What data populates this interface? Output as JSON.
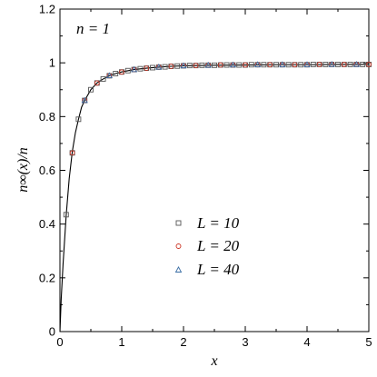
{
  "chart_data": {
    "type": "scatter",
    "annotation": "n = 1",
    "xlabel": "x",
    "ylabel": "n∞(x)/n",
    "xlim": [
      0,
      5
    ],
    "ylim": [
      0,
      1.2
    ],
    "xticks": [
      "0",
      "1",
      "2",
      "3",
      "4",
      "5"
    ],
    "yticks": [
      "0",
      "0.2",
      "0.4",
      "0.6",
      "0.8",
      "1",
      "1.2"
    ],
    "grid": false,
    "legend_position": "bottom-center",
    "curve": {
      "x": [
        0,
        0.02,
        0.05,
        0.1,
        0.15,
        0.2,
        0.25,
        0.3,
        0.35,
        0.4,
        0.5,
        0.6,
        0.7,
        0.8,
        0.9,
        1.0,
        1.2,
        1.4,
        1.6,
        1.8,
        2.0,
        2.5,
        3.0,
        3.5,
        4.0,
        4.5,
        5.0
      ],
      "y": [
        0,
        0.12,
        0.25,
        0.43,
        0.57,
        0.67,
        0.74,
        0.79,
        0.835,
        0.86,
        0.9,
        0.925,
        0.94,
        0.952,
        0.96,
        0.966,
        0.975,
        0.98,
        0.984,
        0.987,
        0.989,
        0.991,
        0.992,
        0.993,
        0.993,
        0.994,
        0.994
      ]
    },
    "series": [
      {
        "name": "L = 10",
        "marker": "square",
        "color": "#555555",
        "x": [
          0.1,
          0.2,
          0.3,
          0.4,
          0.5,
          0.6,
          0.7,
          0.8,
          0.9,
          1.0,
          1.1,
          1.2,
          1.3,
          1.4,
          1.5,
          1.6,
          1.7,
          1.8,
          1.9,
          2.0,
          2.1,
          2.2,
          2.3,
          2.4,
          2.5,
          2.6,
          2.7,
          2.8,
          2.9,
          3.0,
          3.1,
          3.2,
          3.3,
          3.4,
          3.5,
          3.6,
          3.7,
          3.8,
          3.9,
          4.0,
          4.1,
          4.2,
          4.3,
          4.4,
          4.5,
          4.6,
          4.7,
          4.8,
          4.9,
          5.0
        ],
        "y": [
          0.435,
          0.665,
          0.79,
          0.86,
          0.9,
          0.925,
          0.94,
          0.952,
          0.96,
          0.966,
          0.971,
          0.975,
          0.978,
          0.98,
          0.982,
          0.984,
          0.985,
          0.987,
          0.988,
          0.989,
          0.99,
          0.99,
          0.991,
          0.991,
          0.991,
          0.992,
          0.992,
          0.992,
          0.992,
          0.992,
          0.993,
          0.993,
          0.993,
          0.993,
          0.993,
          0.993,
          0.993,
          0.993,
          0.993,
          0.993,
          0.994,
          0.994,
          0.994,
          0.994,
          0.994,
          0.994,
          0.994,
          0.994,
          0.994,
          0.994
        ]
      },
      {
        "name": "L = 20",
        "marker": "circle",
        "color": "#cc3322",
        "x": [
          0.2,
          0.4,
          0.6,
          0.8,
          1.0,
          1.2,
          1.4,
          1.6,
          1.8,
          2.0,
          2.2,
          2.4,
          2.6,
          2.8,
          3.0,
          3.2,
          3.4,
          3.6,
          3.8,
          4.0,
          4.2,
          4.4,
          4.6,
          4.8,
          5.0
        ],
        "y": [
          0.665,
          0.86,
          0.925,
          0.952,
          0.966,
          0.975,
          0.98,
          0.984,
          0.987,
          0.989,
          0.99,
          0.991,
          0.992,
          0.992,
          0.992,
          0.993,
          0.993,
          0.993,
          0.993,
          0.993,
          0.994,
          0.994,
          0.994,
          0.994,
          0.994
        ]
      },
      {
        "name": "L = 40",
        "marker": "triangle",
        "color": "#3a6ea5",
        "x": [
          0.4,
          0.8,
          1.2,
          1.6,
          2.0,
          2.4,
          2.8,
          3.2,
          3.6,
          4.0,
          4.4,
          4.8
        ],
        "y": [
          0.86,
          0.952,
          0.975,
          0.984,
          0.989,
          0.991,
          0.992,
          0.993,
          0.993,
          0.993,
          0.994,
          0.994
        ]
      }
    ]
  }
}
